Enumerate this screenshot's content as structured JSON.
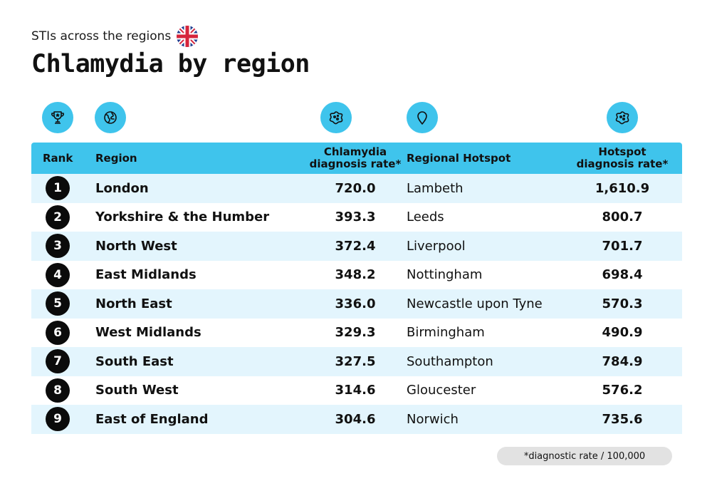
{
  "subtitle": "STIs across the regions",
  "title": "Chlamydia by region",
  "colors": {
    "header_bg": "#3fc4ec",
    "icon_bg": "#3fc4ec",
    "row_alt": "#e3f5fd",
    "row_plain": "#ffffff",
    "badge": "#0b0b0b"
  },
  "icons": [
    "trophy-icon",
    "globe-icon",
    "virus-icon",
    "map-pin-icon",
    "virus-icon"
  ],
  "footnote": "*diagnostic rate / 100,000",
  "chart_data": {
    "type": "table",
    "columns": [
      "Rank",
      "Region",
      "Chlamydia diagnosis rate*",
      "Regional Hotspot",
      "Hotspot diagnosis rate*"
    ],
    "rows": [
      {
        "rank": "1",
        "region": "London",
        "rate": "720.0",
        "hotspot": "Lambeth",
        "hotspot_rate": "1,610.9"
      },
      {
        "rank": "2",
        "region": "Yorkshire & the Humber",
        "rate": "393.3",
        "hotspot": "Leeds",
        "hotspot_rate": "800.7"
      },
      {
        "rank": "3",
        "region": "North West",
        "rate": "372.4",
        "hotspot": "Liverpool",
        "hotspot_rate": "701.7"
      },
      {
        "rank": "4",
        "region": "East Midlands",
        "rate": "348.2",
        "hotspot": "Nottingham",
        "hotspot_rate": "698.4"
      },
      {
        "rank": "5",
        "region": "North East",
        "rate": "336.0",
        "hotspot": "Newcastle upon Tyne",
        "hotspot_rate": "570.3"
      },
      {
        "rank": "6",
        "region": "West Midlands",
        "rate": "329.3",
        "hotspot": "Birmingham",
        "hotspot_rate": "490.9"
      },
      {
        "rank": "7",
        "region": "South East",
        "rate": "327.5",
        "hotspot": "Southampton",
        "hotspot_rate": "784.9"
      },
      {
        "rank": "8",
        "region": "South West",
        "rate": "314.6",
        "hotspot": "Gloucester",
        "hotspot_rate": "576.2"
      },
      {
        "rank": "9",
        "region": "East of England",
        "rate": "304.6",
        "hotspot": "Norwich",
        "hotspot_rate": "735.6"
      }
    ]
  }
}
